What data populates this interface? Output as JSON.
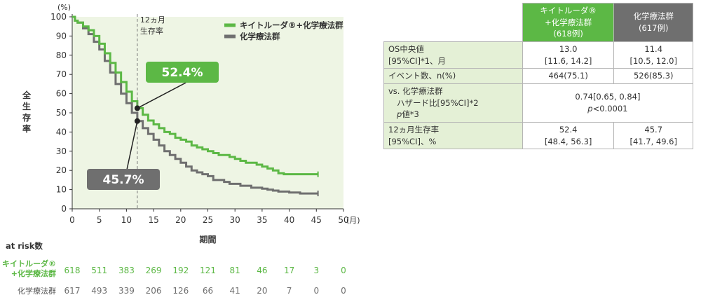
{
  "chart_data": {
    "type": "line",
    "ylabel": "全生存率",
    "y_unit": "(%)",
    "xlabel": "期間",
    "x_unit": "(月)",
    "xlim": [
      0,
      50
    ],
    "ylim": [
      0,
      100
    ],
    "xticks": [
      "0",
      "5",
      "10",
      "15",
      "20",
      "25",
      "30",
      "35",
      "40",
      "45",
      "50"
    ],
    "yticks": [
      "0",
      "10",
      "20",
      "30",
      "40",
      "50",
      "60",
      "70",
      "80",
      "90",
      "100"
    ],
    "reference_line": {
      "x": 12,
      "label_line1": "12ヵ月",
      "label_line2": "生存率"
    },
    "legend_position": "top-right",
    "series": [
      {
        "name": "キイトルーダ®+化学療法群",
        "color": "#5cb845",
        "points": [
          [
            0,
            100
          ],
          [
            0.5,
            98
          ],
          [
            1,
            97
          ],
          [
            2,
            95
          ],
          [
            3,
            93
          ],
          [
            4,
            90
          ],
          [
            5,
            86
          ],
          [
            6,
            81
          ],
          [
            7,
            76
          ],
          [
            8,
            71
          ],
          [
            9,
            66
          ],
          [
            10,
            61
          ],
          [
            11,
            56
          ],
          [
            12,
            52.4
          ],
          [
            13,
            49
          ],
          [
            14,
            46
          ],
          [
            15,
            44
          ],
          [
            16,
            42
          ],
          [
            17,
            40
          ],
          [
            18,
            39
          ],
          [
            19,
            37
          ],
          [
            20,
            36
          ],
          [
            21,
            35
          ],
          [
            22,
            33
          ],
          [
            23,
            32
          ],
          [
            24,
            31
          ],
          [
            25,
            30
          ],
          [
            26,
            29
          ],
          [
            27,
            28
          ],
          [
            28,
            28
          ],
          [
            29,
            27
          ],
          [
            30,
            26
          ],
          [
            31,
            25
          ],
          [
            32,
            24
          ],
          [
            33,
            24
          ],
          [
            34,
            23
          ],
          [
            35,
            22
          ],
          [
            36,
            21
          ],
          [
            37,
            20
          ],
          [
            38,
            18.5
          ],
          [
            39,
            18
          ],
          [
            40,
            18
          ],
          [
            45.3,
            18
          ]
        ]
      },
      {
        "name": "化学療法群",
        "color": "#6f6f6f",
        "points": [
          [
            0,
            100
          ],
          [
            0.5,
            98
          ],
          [
            1,
            97
          ],
          [
            2,
            94
          ],
          [
            3,
            91
          ],
          [
            4,
            87
          ],
          [
            5,
            83
          ],
          [
            6,
            77
          ],
          [
            7,
            71
          ],
          [
            8,
            65
          ],
          [
            9,
            60
          ],
          [
            10,
            55
          ],
          [
            11,
            50
          ],
          [
            12,
            45.7
          ],
          [
            13,
            42
          ],
          [
            14,
            39
          ],
          [
            15,
            36
          ],
          [
            16,
            33
          ],
          [
            17,
            30
          ],
          [
            18,
            28
          ],
          [
            19,
            26
          ],
          [
            20,
            24
          ],
          [
            21,
            22
          ],
          [
            22,
            20
          ],
          [
            23,
            19
          ],
          [
            24,
            18
          ],
          [
            25,
            17
          ],
          [
            26,
            15
          ],
          [
            27,
            15
          ],
          [
            28,
            14
          ],
          [
            29,
            13
          ],
          [
            30,
            13
          ],
          [
            31,
            12
          ],
          [
            32,
            12
          ],
          [
            33,
            11
          ],
          [
            34,
            11
          ],
          [
            35,
            10.5
          ],
          [
            36,
            10
          ],
          [
            37,
            9.5
          ],
          [
            38,
            9
          ],
          [
            40,
            8.5
          ],
          [
            42,
            8
          ],
          [
            45.3,
            8
          ]
        ]
      }
    ],
    "callouts": [
      {
        "series": 0,
        "text": "52.4%",
        "color": "#5cb845"
      },
      {
        "series": 1,
        "text": "45.7%",
        "color": "#6f6f6f"
      }
    ],
    "at_risk": {
      "label": "at risk数",
      "times": [
        0,
        5,
        10,
        15,
        20,
        25,
        30,
        35,
        40,
        45,
        50
      ],
      "rows": [
        {
          "label_line1": "キイトルーダ®",
          "label_line2": "+化学療法群",
          "color": "#5cb845",
          "values": [
            "618",
            "511",
            "383",
            "269",
            "192",
            "121",
            "81",
            "46",
            "17",
            "3",
            "0"
          ]
        },
        {
          "label_line1": "化学療法群",
          "label_line2": "",
          "color": "#6f6f6f",
          "values": [
            "617",
            "493",
            "339",
            "206",
            "126",
            "66",
            "41",
            "20",
            "7",
            "0",
            "0"
          ]
        }
      ]
    }
  },
  "table": {
    "header_keytruda": [
      "キイトルーダ®",
      "+化学療法群",
      "(618例)"
    ],
    "header_chemo": [
      "化学療法群",
      "(617例)"
    ],
    "rows": {
      "os_label1": "OS中央値",
      "os_label2": "[95%CI]*1、月",
      "os_k1": "13.0",
      "os_k2": "[11.6, 14.2]",
      "os_c1": "11.4",
      "os_c2": "[10.5, 12.0]",
      "ev_label": "イベント数、n(%)",
      "ev_k": "464(75.1)",
      "ev_c": "526(85.3)",
      "vs_label1": "vs. 化学療法群",
      "vs_label2": "ハザード比[95%CI]*2",
      "vs_label3_italic": "p",
      "vs_label3_rest": "値*3",
      "hr": "0.74[0.65, 0.84]",
      "p_italic": "p",
      "p_rest": "<0.0001",
      "sr_label1": "12ヵ月生存率",
      "sr_label2": "[95%CI]、%",
      "sr_k1": "52.4",
      "sr_k2": "[48.4, 56.3]",
      "sr_c1": "45.7",
      "sr_c2": "[41.7, 49.6]"
    }
  }
}
